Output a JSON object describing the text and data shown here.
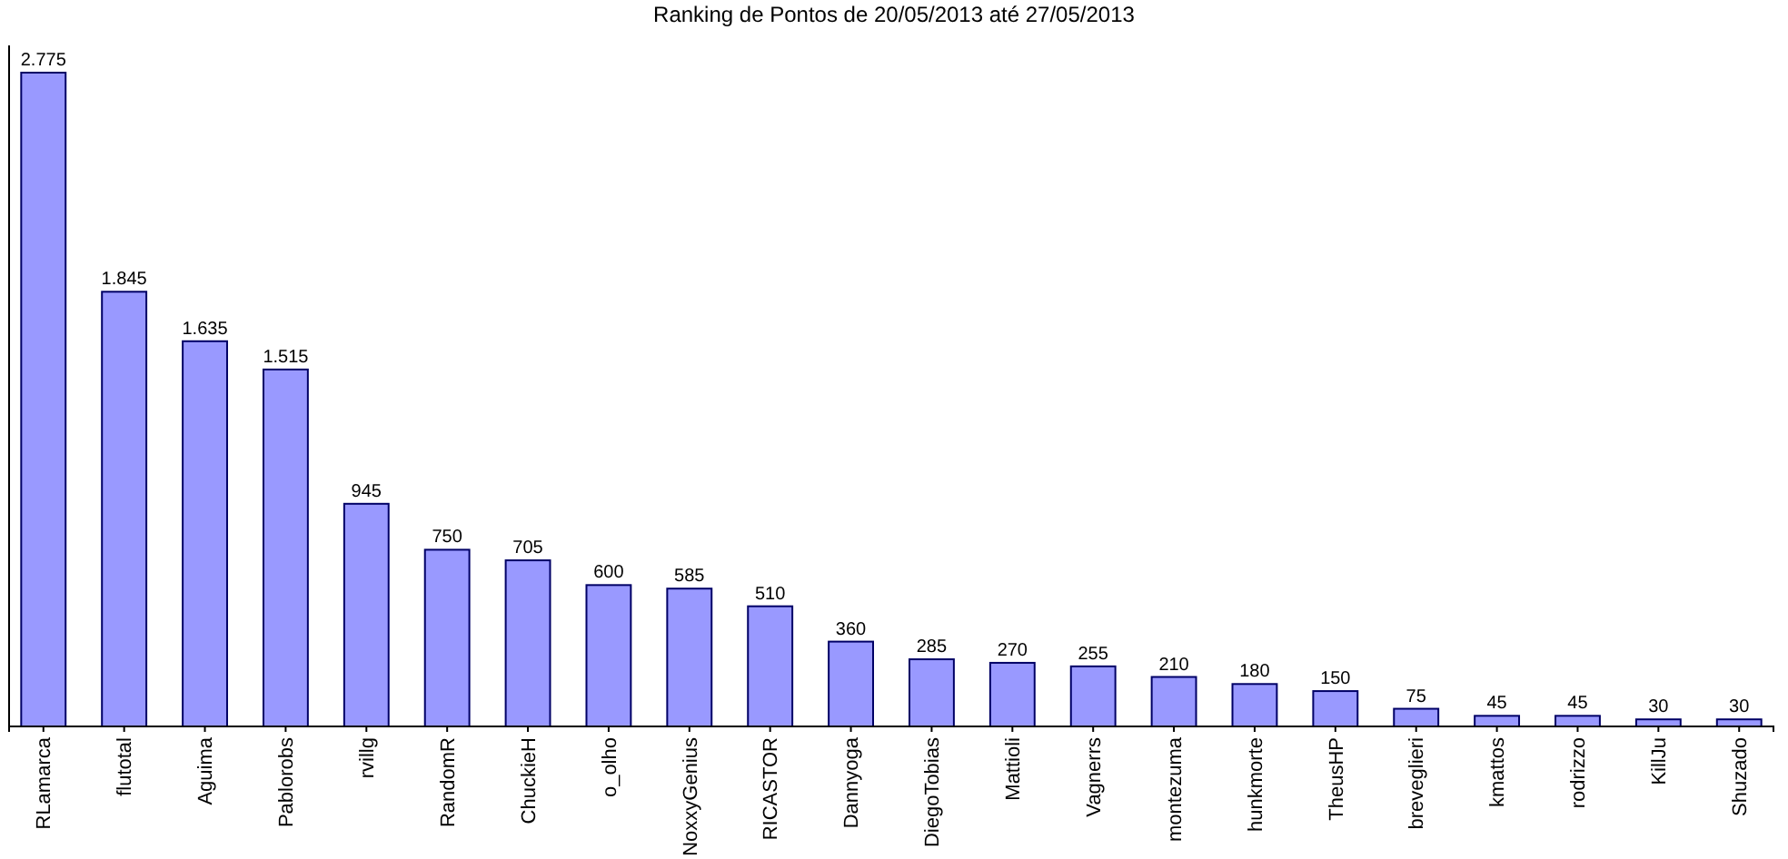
{
  "chart_data": {
    "type": "bar",
    "title": "Ranking de Pontos de 20/05/2013 até 27/05/2013",
    "categories": [
      "RLamarca",
      "flutotal",
      "Aguima",
      "Pablorobs",
      "rvillg",
      "RandomR",
      "ChuckieH",
      "o_olho",
      "NoxxyGenius",
      "RICASTOR",
      "Dannyoga",
      "DiegoTobias",
      "Mattioli",
      "Vagnerrs",
      "montezuma",
      "hunkmorte",
      "TheusHP",
      "breveglieri",
      "kmattos",
      "rodrizzo",
      "KillJu",
      "Shuzado"
    ],
    "values": [
      2775,
      1845,
      1635,
      1515,
      945,
      750,
      705,
      600,
      585,
      510,
      360,
      285,
      270,
      255,
      210,
      180,
      150,
      75,
      45,
      45,
      30,
      30
    ],
    "value_labels": [
      "2.775",
      "1.845",
      "1.635",
      "1.515",
      "945",
      "750",
      "705",
      "600",
      "585",
      "510",
      "360",
      "285",
      "270",
      "255",
      "210",
      "180",
      "150",
      "75",
      "45",
      "45",
      "30",
      "30"
    ],
    "color": "#9999ff"
  }
}
